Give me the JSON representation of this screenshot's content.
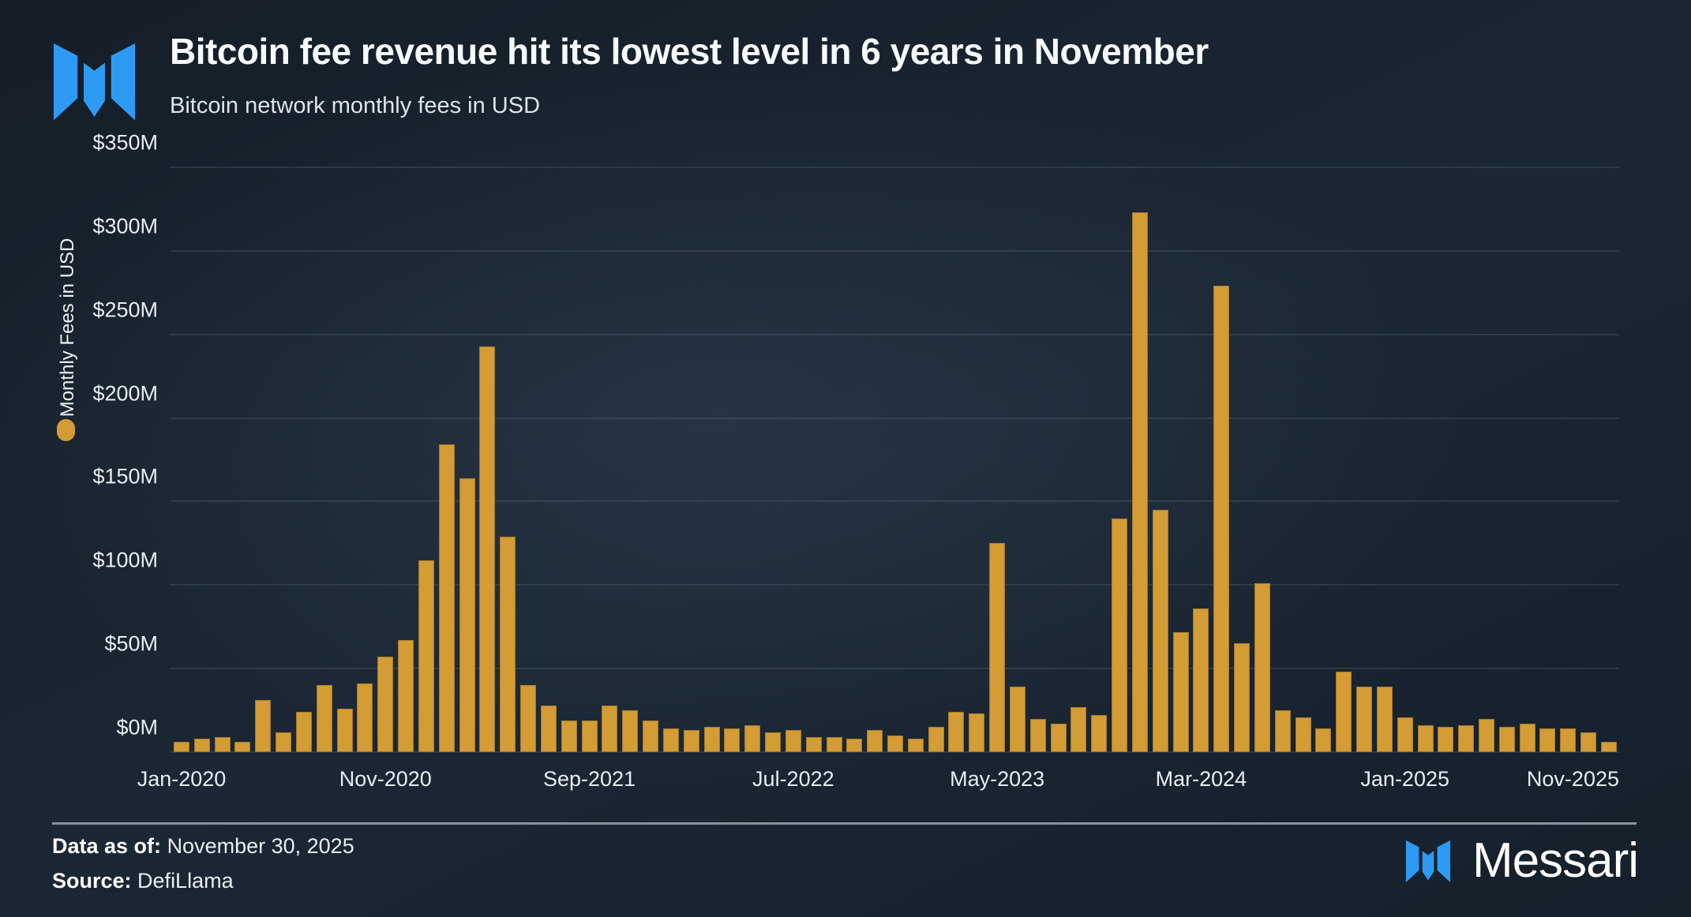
{
  "header": {
    "title": "Bitcoin fee revenue hit its lowest level in 6 years in November",
    "subtitle": "Bitcoin network monthly fees in USD"
  },
  "footer": {
    "data_as_of_label": "Data as of:",
    "data_as_of_value": "November 30, 2025",
    "source_label": "Source:",
    "source_value": "DefiLlama",
    "brand": "Messari"
  },
  "colors": {
    "background": "#1b2836",
    "bar": "#d39c34",
    "accent_blue": "#2d9bf4",
    "gridline": "rgba(125,145,163,0.38)",
    "divider": "#89939c",
    "text_primary": "#f5f8fa"
  },
  "chart_data": {
    "type": "bar",
    "title": "Bitcoin fee revenue hit its lowest level in 6 years in November",
    "subtitle": "Bitcoin network monthly fees in USD",
    "xlabel": "",
    "ylabel": "Monthly Fees in USD",
    "ylim": [
      0,
      350
    ],
    "grid": true,
    "legend_position": "left",
    "y_ticks": [
      "$0M",
      "$50M",
      "$100M",
      "$150M",
      "$200M",
      "$250M",
      "$300M",
      "$350M"
    ],
    "x_ticks": [
      {
        "index": 0,
        "label": "Jan-2020"
      },
      {
        "index": 10,
        "label": "Nov-2020"
      },
      {
        "index": 20,
        "label": "Sep-2021"
      },
      {
        "index": 30,
        "label": "Jul-2022"
      },
      {
        "index": 40,
        "label": "May-2023"
      },
      {
        "index": 50,
        "label": "Mar-2024"
      },
      {
        "index": 60,
        "label": "Jan-2025"
      },
      {
        "index": 70,
        "label": "Nov-2025",
        "align": "right"
      }
    ],
    "categories": [
      "Jan-2020",
      "Feb-2020",
      "Mar-2020",
      "Apr-2020",
      "May-2020",
      "Jun-2020",
      "Jul-2020",
      "Aug-2020",
      "Sep-2020",
      "Oct-2020",
      "Nov-2020",
      "Dec-2020",
      "Jan-2021",
      "Feb-2021",
      "Mar-2021",
      "Apr-2021",
      "May-2021",
      "Jun-2021",
      "Jul-2021",
      "Aug-2021",
      "Sep-2021",
      "Oct-2021",
      "Nov-2021",
      "Dec-2021",
      "Jan-2022",
      "Feb-2022",
      "Mar-2022",
      "Apr-2022",
      "May-2022",
      "Jun-2022",
      "Jul-2022",
      "Aug-2022",
      "Sep-2022",
      "Oct-2022",
      "Nov-2022",
      "Dec-2022",
      "Jan-2023",
      "Feb-2023",
      "Mar-2023",
      "Apr-2023",
      "May-2023",
      "Jun-2023",
      "Jul-2023",
      "Aug-2023",
      "Sep-2023",
      "Oct-2023",
      "Nov-2023",
      "Dec-2023",
      "Jan-2024",
      "Feb-2024",
      "Mar-2024",
      "Apr-2024",
      "May-2024",
      "Jun-2024",
      "Jul-2024",
      "Aug-2024",
      "Sep-2024",
      "Oct-2024",
      "Nov-2024",
      "Dec-2024",
      "Jan-2025",
      "Feb-2025",
      "Mar-2025",
      "Apr-2025",
      "May-2025",
      "Jun-2025",
      "Jul-2025",
      "Aug-2025",
      "Sep-2025",
      "Oct-2025",
      "Nov-2025"
    ],
    "values": [
      6,
      8,
      9,
      6,
      31,
      12,
      24,
      40,
      26,
      41,
      57,
      67,
      115,
      184,
      164,
      243,
      129,
      40,
      28,
      19,
      19,
      28,
      25,
      19,
      14,
      13,
      15,
      14,
      16,
      12,
      13,
      9,
      9,
      8,
      13,
      10,
      8,
      15,
      24,
      23,
      125,
      39,
      20,
      17,
      27,
      22,
      140,
      323,
      145,
      72,
      86,
      279,
      65,
      101,
      25,
      21,
      14,
      48,
      39,
      39,
      21,
      16,
      15,
      16,
      20,
      15,
      17,
      14,
      14,
      12,
      6
    ],
    "series_name": "Monthly Fees in USD",
    "unit": "USD millions"
  }
}
